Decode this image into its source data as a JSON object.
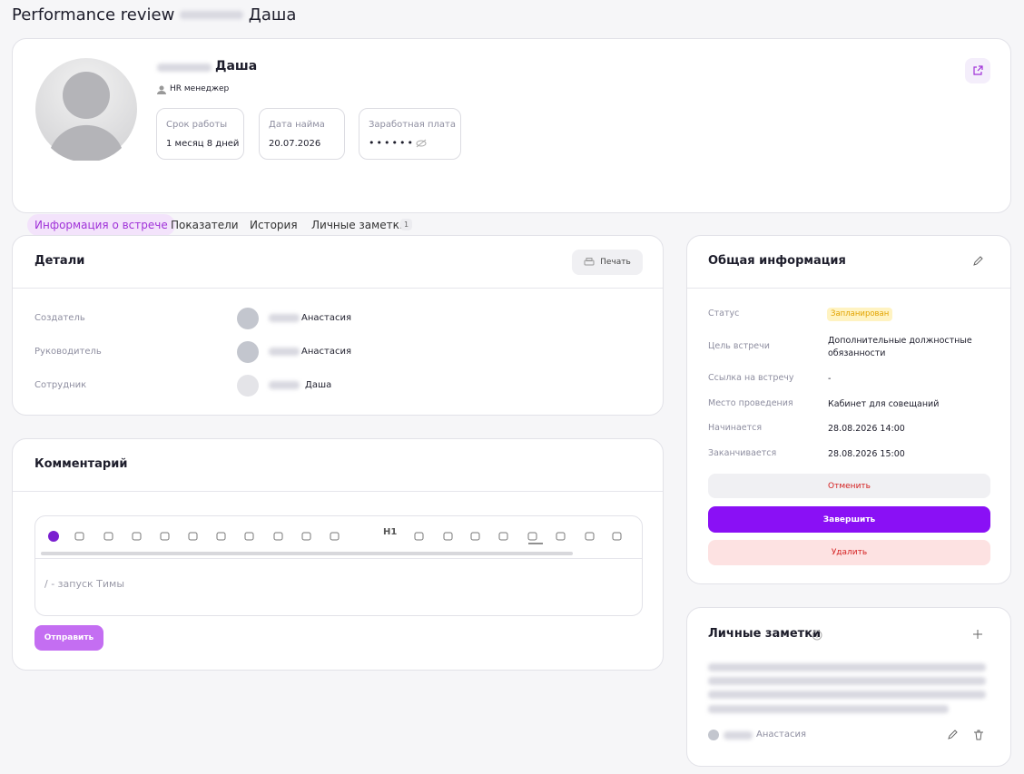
{
  "header": {
    "title": "Performance review",
    "title_name": "Даша"
  },
  "profile": {
    "name": "Даша",
    "role": "HR менеджер",
    "stats": [
      {
        "label": "Срок работы",
        "value": "1 месяц 8 дней"
      },
      {
        "label": "Дата найма",
        "value": "20.07.2026"
      },
      {
        "label": "Заработная плата",
        "value": "••••••"
      }
    ]
  },
  "tabs": [
    {
      "label": "Информация о встрече"
    },
    {
      "label": "Показатели"
    },
    {
      "label": "История"
    },
    {
      "label": "Личные заметки",
      "badge": 1
    }
  ],
  "details": {
    "title": "Детали",
    "print": "Печать",
    "rows": [
      {
        "label": "Создатель",
        "name": "Анастасия"
      },
      {
        "label": "Руководитель",
        "name": "Анастасия"
      },
      {
        "label": "Сотрудник",
        "name": "Даша"
      }
    ]
  },
  "comment": {
    "title": "Комментарий",
    "heading_button": "H1",
    "placeholder": "/ - запуск Тимы",
    "submit": "Отправить"
  },
  "info": {
    "title": "Общая информация",
    "rows": [
      {
        "label": "Статус",
        "value": "Запланирован"
      },
      {
        "label": "Цель встречи",
        "value": "Дополнительные должностные обязанности"
      },
      {
        "label": "Ссылка на встречу",
        "value": "-"
      },
      {
        "label": "Место проведения",
        "value": "Кабинет для совещаний"
      },
      {
        "label": "Начинается",
        "value": "28.08.2026 14:00"
      },
      {
        "label": "Заканчивается",
        "value": "28.08.2026 15:00"
      }
    ],
    "buttons": {
      "cancel": "Отменить",
      "finish": "Завершить",
      "delete": "Удалить"
    }
  },
  "notes": {
    "title": "Личные заметки",
    "author": "Анастасия"
  }
}
